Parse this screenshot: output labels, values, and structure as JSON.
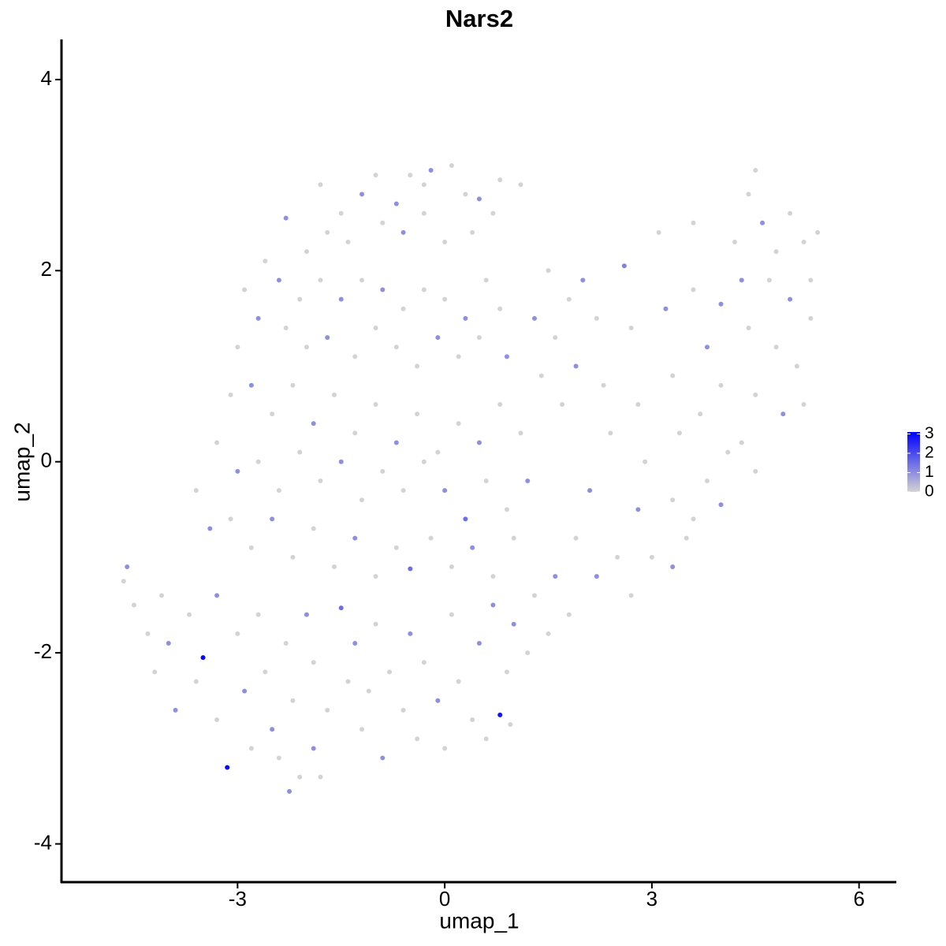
{
  "chart_data": {
    "type": "scatter",
    "title": "Nars2",
    "x_label": "umap_1",
    "y_label": "umap_2",
    "xlim": [
      -5.55,
      6.54
    ],
    "ylim": [
      -4.4,
      4.42
    ],
    "xticks": [
      -3,
      0,
      3,
      6
    ],
    "yticks": [
      -4,
      -2,
      0,
      2,
      4
    ],
    "low_color": "#d3d3d3",
    "high_color": "#0000ff",
    "clim": [
      0,
      3.1
    ],
    "cticks": [
      0,
      1,
      2,
      3
    ],
    "x": [
      -1.8,
      -1.5,
      -1.2,
      -1.0,
      -0.7,
      -0.5,
      -0.3,
      -0.2,
      0.1,
      0.3,
      0.5,
      0.8,
      -2.3,
      -2.0,
      -1.7,
      -1.4,
      -0.9,
      -0.6,
      -0.3,
      0.0,
      0.4,
      0.7,
      -2.6,
      -2.4,
      -2.1,
      -1.8,
      -1.5,
      -1.2,
      -0.9,
      -0.6,
      -0.3,
      0.0,
      0.3,
      0.6,
      0.8,
      -2.9,
      -2.7,
      -2.3,
      -2.0,
      -1.7,
      -1.3,
      -1.0,
      -0.7,
      -0.4,
      -0.1,
      0.2,
      0.5,
      0.9,
      -3.0,
      -3.1,
      -2.8,
      -2.5,
      -2.2,
      -1.9,
      -1.6,
      -1.3,
      -1.0,
      -0.7,
      -0.4,
      -0.1,
      0.2,
      0.5,
      0.8,
      1.1,
      -3.3,
      -3.0,
      -2.7,
      -2.4,
      -2.1,
      -1.8,
      -1.5,
      -1.2,
      -0.9,
      -0.6,
      -0.3,
      0.0,
      0.3,
      0.6,
      0.9,
      1.2,
      -3.6,
      -3.4,
      -3.1,
      -2.8,
      -2.5,
      -2.2,
      -1.9,
      -1.6,
      -1.3,
      -1.0,
      -0.7,
      -0.5,
      -0.2,
      0.1,
      0.4,
      0.7,
      1.0,
      -4.6,
      -4.65,
      -4.5,
      -4.3,
      -4.1,
      -4.0,
      -4.2,
      -3.9,
      -3.7,
      -3.6,
      -3.5,
      -3.3,
      -3.3,
      -3.15,
      -3.0,
      -2.9,
      -2.8,
      -2.7,
      -2.6,
      -2.5,
      -2.4,
      -2.3,
      -2.25,
      -2.2,
      -2.1,
      -2.0,
      -1.9,
      -1.9,
      -1.8,
      -1.7,
      -1.5,
      -1.4,
      -1.3,
      -1.2,
      -1.1,
      -1.0,
      -0.9,
      -0.8,
      -0.6,
      -0.5,
      -0.4,
      -0.3,
      -0.1,
      0.0,
      0.1,
      0.2,
      0.4,
      0.5,
      0.6,
      0.8,
      0.9,
      0.95,
      1.0,
      1.2,
      1.3,
      0.7,
      1.5,
      1.6,
      1.8,
      1.3,
      1.6,
      1.4,
      1.7,
      1.9,
      2.0,
      2.2,
      2.3,
      2.4,
      2.1,
      1.9,
      2.2,
      2.5,
      2.6,
      2.7,
      2.8,
      2.9,
      2.8,
      3.0,
      2.7,
      3.1,
      3.2,
      3.3,
      3.4,
      3.3,
      3.3,
      3.5,
      3.6,
      3.6,
      3.8,
      3.7,
      3.8,
      3.6,
      4.0,
      4.0,
      4.1,
      4.0,
      4.2,
      4.3,
      4.4,
      4.5,
      4.3,
      4.5,
      4.4,
      4.5,
      4.6,
      4.7,
      4.8,
      4.9,
      4.8,
      5.0,
      5.0,
      5.1,
      5.2,
      5.3,
      5.4,
      5.3,
      5.2,
      1.5,
      1.1,
      1.8
    ],
    "y": [
      2.9,
      2.6,
      2.8,
      3.0,
      2.7,
      3.0,
      2.9,
      3.05,
      3.1,
      2.8,
      2.75,
      2.95,
      2.55,
      2.2,
      2.4,
      2.3,
      2.5,
      2.4,
      2.6,
      2.3,
      2.4,
      2.6,
      2.1,
      1.9,
      1.7,
      1.9,
      1.7,
      1.9,
      1.8,
      1.6,
      1.8,
      1.7,
      1.5,
      1.9,
      1.6,
      1.8,
      1.5,
      1.4,
      1.2,
      1.3,
      1.1,
      1.4,
      1.2,
      1.0,
      1.3,
      1.1,
      1.3,
      1.1,
      1.2,
      0.7,
      0.8,
      0.5,
      0.8,
      0.4,
      0.7,
      0.3,
      0.6,
      0.2,
      0.5,
      0.1,
      0.4,
      0.2,
      0.6,
      0.3,
      0.2,
      -0.1,
      0.0,
      -0.3,
      0.1,
      -0.2,
      0.0,
      -0.4,
      -0.1,
      -0.3,
      0.0,
      -0.3,
      -0.6,
      -0.2,
      -0.5,
      -0.2,
      -0.3,
      -0.7,
      -0.6,
      -0.9,
      -0.6,
      -1.0,
      -0.7,
      -1.1,
      -0.8,
      -1.2,
      -0.9,
      -1.12,
      -0.8,
      -1.1,
      -0.9,
      -1.2,
      -0.8,
      -1.1,
      -1.25,
      -1.5,
      -1.8,
      -1.4,
      -1.9,
      -2.2,
      -2.6,
      -1.6,
      -2.3,
      -2.05,
      -1.4,
      -2.7,
      -3.2,
      -1.8,
      -2.4,
      -3.0,
      -1.6,
      -2.2,
      -2.8,
      -3.1,
      -1.9,
      -3.45,
      -2.5,
      -3.3,
      -1.6,
      -2.1,
      -3.0,
      -3.3,
      -2.6,
      -1.53,
      -2.3,
      -1.9,
      -2.8,
      -2.4,
      -1.7,
      -3.1,
      -2.2,
      -2.6,
      -1.8,
      -2.9,
      -2.1,
      -2.5,
      -3.0,
      -1.6,
      -2.3,
      -2.7,
      -1.9,
      -2.9,
      -2.65,
      -2.2,
      -2.75,
      -1.7,
      -2.0,
      -1.4,
      -1.5,
      -1.8,
      -1.2,
      -1.6,
      1.5,
      1.3,
      0.9,
      0.6,
      1.0,
      1.9,
      1.5,
      0.8,
      0.3,
      -0.3,
      -0.8,
      -1.2,
      -1.0,
      2.05,
      1.4,
      0.6,
      0.0,
      -0.5,
      -1.0,
      -1.4,
      2.4,
      1.6,
      0.9,
      0.3,
      -0.4,
      -1.1,
      -0.8,
      2.5,
      1.8,
      1.2,
      0.5,
      -0.2,
      -0.6,
      1.65,
      0.8,
      0.1,
      -0.45,
      2.3,
      1.9,
      1.4,
      0.7,
      0.2,
      -0.1,
      2.8,
      3.05,
      2.5,
      1.9,
      1.2,
      0.5,
      2.2,
      2.6,
      1.7,
      1.0,
      2.3,
      1.9,
      2.4,
      1.5,
      0.6,
      2.0,
      2.9,
      1.7
    ],
    "values": [
      0,
      0,
      1,
      0,
      1,
      0,
      0,
      1,
      0,
      0,
      1,
      0,
      1,
      0,
      0,
      0,
      0,
      1,
      0,
      0,
      0,
      0,
      0,
      1,
      0,
      0,
      1,
      0,
      1,
      0,
      0,
      0,
      1,
      0,
      0,
      0,
      1,
      0,
      0,
      1,
      0,
      0,
      0,
      0,
      1,
      0,
      0,
      1,
      0,
      0,
      1,
      0,
      0,
      1,
      0,
      0,
      0,
      1,
      0,
      0,
      0,
      1,
      0,
      0,
      0,
      1,
      0,
      0,
      0,
      0,
      1,
      0,
      0,
      0,
      0,
      1,
      1.5,
      0,
      0,
      1,
      0,
      1,
      0,
      0,
      1,
      0,
      0,
      0,
      1,
      0,
      0,
      1.5,
      0,
      0,
      1,
      0,
      0,
      1,
      0,
      0,
      0,
      0,
      1,
      0,
      1,
      0,
      0,
      3,
      1,
      0,
      3,
      0,
      1,
      0,
      0,
      0,
      1,
      0,
      0,
      1,
      0,
      0,
      1,
      0,
      1,
      0,
      0,
      1.5,
      0,
      1,
      0,
      0,
      0,
      1,
      0,
      0,
      1,
      0,
      0,
      1,
      0,
      0,
      0,
      0,
      1,
      0,
      2.8,
      0,
      0,
      1,
      0,
      0,
      1,
      0,
      1,
      0,
      1,
      0,
      0,
      0,
      1,
      1,
      0,
      0,
      0,
      1,
      0,
      1,
      0,
      1.2,
      0,
      0,
      0,
      1,
      0,
      0,
      0,
      1,
      0,
      0,
      0,
      1,
      0,
      0,
      0,
      1,
      0,
      0,
      0,
      1,
      0,
      0,
      1,
      0,
      1,
      0,
      0,
      0,
      0,
      0,
      0,
      1,
      0,
      0,
      1,
      0,
      0,
      1,
      0,
      0,
      0,
      0,
      0,
      0,
      0,
      0,
      0
    ]
  }
}
